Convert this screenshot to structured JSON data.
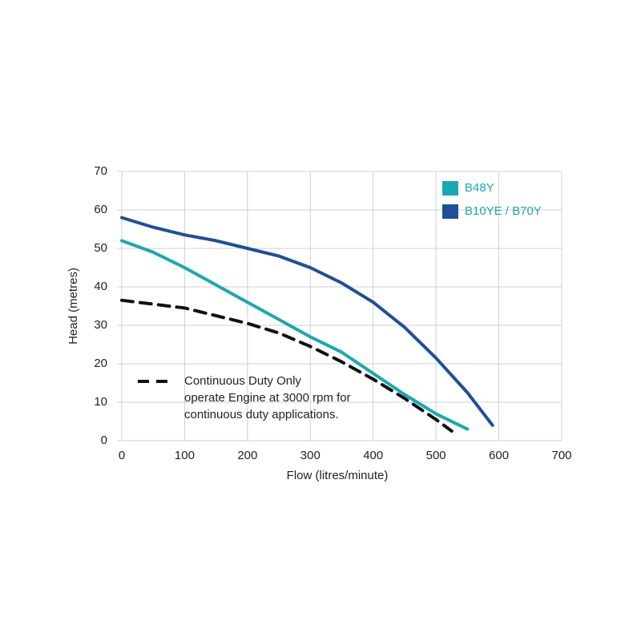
{
  "chart_data": {
    "type": "line",
    "xlabel": "Flow (litres/minute)",
    "ylabel": "Head (metres)",
    "xlim": [
      0,
      700
    ],
    "xticks": [
      0,
      100,
      200,
      300,
      400,
      500,
      600,
      700
    ],
    "ylim": [
      0,
      70
    ],
    "yticks": [
      0,
      10,
      20,
      30,
      40,
      50,
      60,
      70
    ],
    "grid": true,
    "legend": "upper right",
    "series": [
      {
        "name": "B48Y",
        "color": "#1aa8b0",
        "x": [
          0,
          50,
          100,
          150,
          200,
          250,
          300,
          350,
          400,
          450,
          500,
          550
        ],
        "values": [
          52,
          49,
          45,
          40.5,
          36,
          31.5,
          27,
          23,
          17.5,
          12,
          7,
          3
        ]
      },
      {
        "name": "B10YE / B70Y",
        "color": "#1e4f9a",
        "x": [
          0,
          50,
          100,
          150,
          200,
          250,
          300,
          350,
          400,
          450,
          500,
          550,
          590
        ],
        "values": [
          58,
          55.5,
          53.5,
          52,
          50,
          48,
          45,
          41,
          36,
          29.5,
          21.5,
          12.5,
          4
        ]
      },
      {
        "name": "Continuous Duty Only",
        "color": "#111111",
        "dashed": true,
        "x": [
          0,
          50,
          100,
          150,
          200,
          250,
          300,
          350,
          400,
          450,
          500,
          525
        ],
        "values": [
          36.5,
          35.5,
          34.5,
          32.5,
          30.5,
          28,
          24.5,
          20.5,
          16,
          11,
          5.5,
          2.5
        ]
      }
    ],
    "annotation": [
      "operate Engine at 3000 rpm for",
      "continuous duty applications."
    ]
  }
}
